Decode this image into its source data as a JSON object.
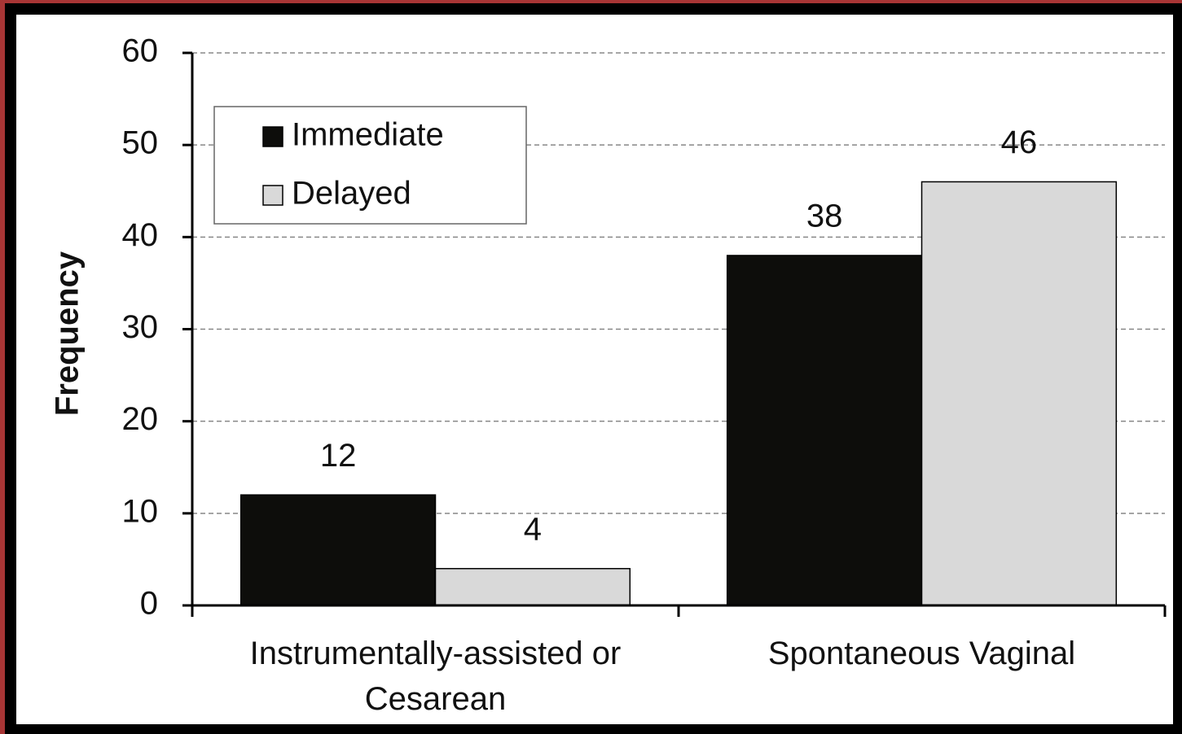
{
  "chart_data": {
    "type": "bar",
    "y_label": "Frequency",
    "categories": [
      "Instrumentally-assisted or Cesarean",
      "Spontaneous Vaginal"
    ],
    "series": [
      {
        "name": "Immediate",
        "color": "#0d0d0b",
        "values": [
          12,
          38
        ]
      },
      {
        "name": "Delayed",
        "color": "#d9d9d9",
        "values": [
          4,
          46
        ]
      }
    ],
    "ylim": [
      0,
      60
    ],
    "yticks": [
      0,
      10,
      20,
      30,
      40,
      50,
      60
    ],
    "grid": true,
    "legend": "upper left"
  }
}
